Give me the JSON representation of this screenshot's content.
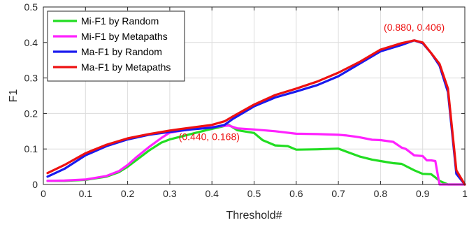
{
  "chart_data": {
    "type": "line",
    "title": "",
    "xlabel": "Threshold#",
    "ylabel": "F1",
    "xlim": [
      0,
      1
    ],
    "ylim": [
      0,
      0.5
    ],
    "xticks": [
      0,
      0.1,
      0.2,
      0.3,
      0.4,
      0.5,
      0.6,
      0.7,
      0.8,
      0.9,
      1
    ],
    "xtick_labels": [
      "0",
      "0.1",
      "0.2",
      "0.3",
      "0.4",
      "0.5",
      "0.6",
      "0.7",
      "0.8",
      "0.9",
      "1"
    ],
    "yticks": [
      0,
      0.1,
      0.2,
      0.3,
      0.4,
      0.5
    ],
    "ytick_labels": [
      "0",
      "0.1",
      "0.2",
      "0.3",
      "0.4",
      "0.5"
    ],
    "grid": true,
    "legend_position": "top-left",
    "series": [
      {
        "name": "Mi-F1 by Random",
        "color": "#22dd22",
        "x": [
          0.01,
          0.05,
          0.1,
          0.15,
          0.18,
          0.2,
          0.22,
          0.25,
          0.28,
          0.3,
          0.33,
          0.36,
          0.39,
          0.42,
          0.44,
          0.46,
          0.5,
          0.52,
          0.55,
          0.58,
          0.6,
          0.65,
          0.7,
          0.72,
          0.75,
          0.78,
          0.8,
          0.83,
          0.85,
          0.88,
          0.9,
          0.92,
          0.93,
          0.94,
          0.96,
          0.98,
          1.0
        ],
        "y": [
          0.01,
          0.01,
          0.013,
          0.022,
          0.035,
          0.05,
          0.068,
          0.095,
          0.118,
          0.127,
          0.136,
          0.145,
          0.154,
          0.162,
          0.168,
          0.153,
          0.145,
          0.125,
          0.11,
          0.108,
          0.098,
          0.099,
          0.101,
          0.092,
          0.079,
          0.07,
          0.066,
          0.06,
          0.058,
          0.04,
          0.03,
          0.029,
          0.02,
          0.01,
          0.0,
          0.0,
          0.0
        ]
      },
      {
        "name": "Mi-F1 by Metapaths",
        "color": "#ff22ff",
        "x": [
          0.01,
          0.05,
          0.1,
          0.15,
          0.18,
          0.2,
          0.22,
          0.25,
          0.28,
          0.3,
          0.33,
          0.36,
          0.39,
          0.42,
          0.44,
          0.46,
          0.5,
          0.55,
          0.6,
          0.65,
          0.7,
          0.72,
          0.75,
          0.78,
          0.8,
          0.83,
          0.85,
          0.86,
          0.88,
          0.9,
          0.91,
          0.92,
          0.93,
          0.94,
          0.96,
          0.98,
          1.0
        ],
        "y": [
          0.01,
          0.011,
          0.014,
          0.024,
          0.038,
          0.055,
          0.076,
          0.105,
          0.131,
          0.146,
          0.152,
          0.157,
          0.161,
          0.164,
          0.166,
          0.158,
          0.155,
          0.15,
          0.143,
          0.142,
          0.14,
          0.138,
          0.133,
          0.126,
          0.125,
          0.12,
          0.104,
          0.1,
          0.082,
          0.08,
          0.068,
          0.068,
          0.066,
          0.0,
          0.0,
          0.0,
          0.0
        ]
      },
      {
        "name": "Ma-F1 by Random",
        "color": "#1a1aee",
        "x": [
          0.01,
          0.05,
          0.1,
          0.15,
          0.2,
          0.25,
          0.3,
          0.35,
          0.4,
          0.43,
          0.45,
          0.5,
          0.55,
          0.6,
          0.65,
          0.7,
          0.75,
          0.8,
          0.85,
          0.88,
          0.9,
          0.92,
          0.94,
          0.96,
          0.98,
          1.0
        ],
        "y": [
          0.022,
          0.044,
          0.082,
          0.108,
          0.127,
          0.14,
          0.148,
          0.155,
          0.16,
          0.168,
          0.185,
          0.22,
          0.245,
          0.262,
          0.28,
          0.305,
          0.34,
          0.375,
          0.393,
          0.406,
          0.398,
          0.37,
          0.335,
          0.26,
          0.03,
          0.0
        ]
      },
      {
        "name": "Ma-F1 by Metapaths",
        "color": "#ee1111",
        "x": [
          0.01,
          0.05,
          0.1,
          0.15,
          0.2,
          0.25,
          0.3,
          0.35,
          0.4,
          0.43,
          0.45,
          0.5,
          0.55,
          0.6,
          0.65,
          0.7,
          0.75,
          0.8,
          0.85,
          0.88,
          0.9,
          0.92,
          0.94,
          0.96,
          0.98,
          1.0
        ],
        "y": [
          0.032,
          0.055,
          0.088,
          0.112,
          0.13,
          0.142,
          0.152,
          0.16,
          0.168,
          0.178,
          0.192,
          0.225,
          0.252,
          0.27,
          0.29,
          0.315,
          0.345,
          0.38,
          0.398,
          0.406,
          0.4,
          0.37,
          0.34,
          0.27,
          0.04,
          0.0
        ]
      }
    ],
    "annotations": [
      {
        "text": "(0.880, 0.406)",
        "x": 0.88,
        "y": 0.406,
        "color": "#ee1111"
      },
      {
        "text": "(0.440, 0.168)",
        "x": 0.44,
        "y": 0.168,
        "color": "#ee1111"
      }
    ]
  }
}
